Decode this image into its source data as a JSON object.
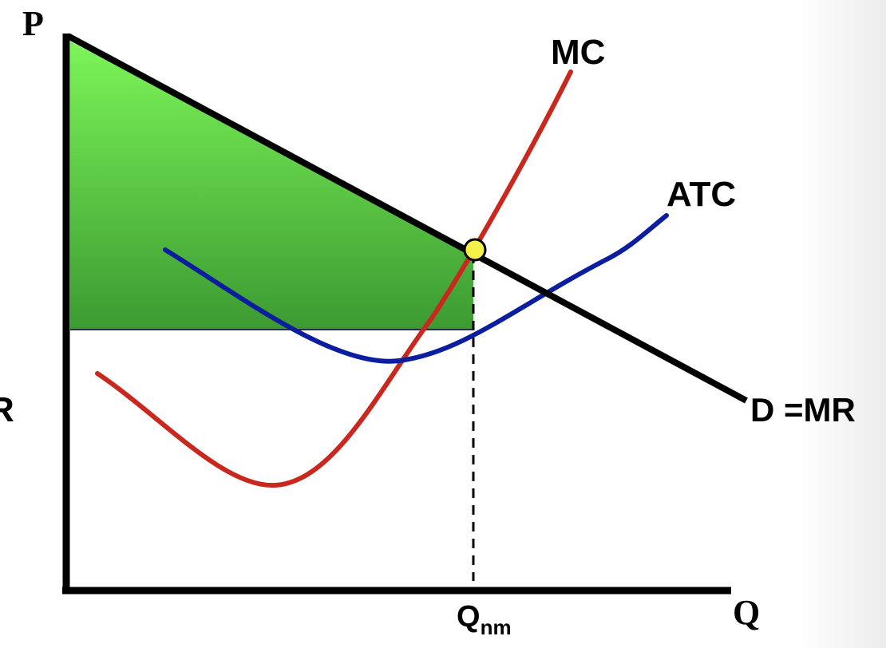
{
  "axes": {
    "y_label": "P",
    "x_label": "Q"
  },
  "curves": [
    {
      "label": "MC"
    },
    {
      "label": "ATC"
    },
    {
      "label": "D =MR"
    }
  ],
  "quantity_marker": {
    "label": "Q",
    "subscript": "nm"
  },
  "edge_text": "R"
}
